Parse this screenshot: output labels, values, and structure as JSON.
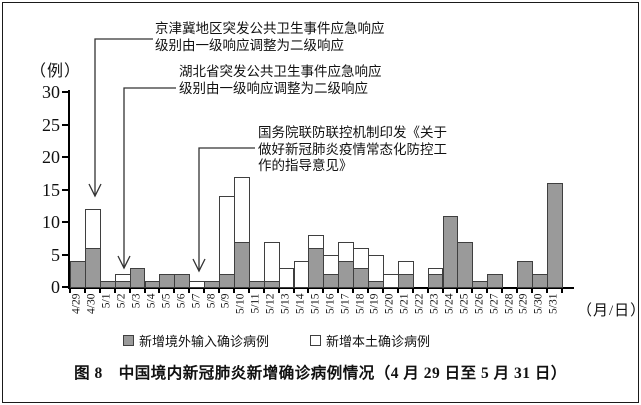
{
  "caption": "图 8　中国境内新冠肺炎新增确诊病例情况（4 月 29 日至 5 月 31 日）",
  "axes": {
    "y_unit": "（例）",
    "x_unit": "（月/日）"
  },
  "legend": [
    {
      "label": "新增境外输入确诊病例",
      "swatch_color": "#9a9a9a"
    },
    {
      "label": "新增本土确诊病例",
      "swatch_color": "#ffffff"
    }
  ],
  "annotations": [
    {
      "target": "4/30",
      "lines": [
        "京津冀地区突发公共卫生事件应急响应",
        "级别由一级响应调整为二级响应"
      ]
    },
    {
      "target": "5/2",
      "lines": [
        "湖北省突发公共卫生事件应急响应",
        "级别由一级响应调整为二级响应"
      ]
    },
    {
      "target": "5/7",
      "lines": [
        "国务院联防联控机制印发《关于",
        "做好新冠肺炎疫情常态化防控工",
        "作的指导意见》"
      ]
    }
  ],
  "colors": {
    "imported_fill": "#9a9a9a",
    "local_fill": "#ffffff",
    "bar_border": "#3f3f3f",
    "axis": "#000000",
    "leader": "#333333"
  },
  "chart_data": {
    "type": "bar",
    "stacked": true,
    "title": "中国境内新冠肺炎新增确诊病例情况（4月29日至5月31日）",
    "xlabel": "月/日",
    "ylabel": "例",
    "ylim": [
      0,
      30
    ],
    "yticks": [
      0,
      5,
      10,
      15,
      20,
      25,
      30
    ],
    "grid": false,
    "legend_position": "bottom",
    "categories": [
      "4/29",
      "4/30",
      "5/1",
      "5/2",
      "5/3",
      "5/4",
      "5/5",
      "5/6",
      "5/7",
      "5/8",
      "5/9",
      "5/10",
      "5/11",
      "5/12",
      "5/13",
      "5/14",
      "5/15",
      "5/16",
      "5/17",
      "5/18",
      "5/19",
      "5/20",
      "5/21",
      "5/22",
      "5/23",
      "5/24",
      "5/25",
      "5/26",
      "5/27",
      "5/28",
      "5/29",
      "5/30",
      "5/31"
    ],
    "series": [
      {
        "name": "新增境外输入确诊病例",
        "color": "#9a9a9a",
        "values": [
          4,
          6,
          1,
          1,
          3,
          1,
          2,
          2,
          0,
          1,
          2,
          7,
          1,
          1,
          0,
          0,
          6,
          2,
          4,
          3,
          1,
          0,
          2,
          0,
          2,
          11,
          7,
          1,
          2,
          0,
          4,
          2,
          16
        ]
      },
      {
        "name": "新增本土确诊病例",
        "color": "#ffffff",
        "values": [
          0,
          6,
          0,
          1,
          0,
          0,
          0,
          0,
          1,
          0,
          12,
          10,
          0,
          6,
          3,
          4,
          2,
          3,
          3,
          3,
          4,
          2,
          2,
          0,
          1,
          0,
          0,
          0,
          0,
          0,
          0,
          0,
          0
        ]
      }
    ]
  }
}
